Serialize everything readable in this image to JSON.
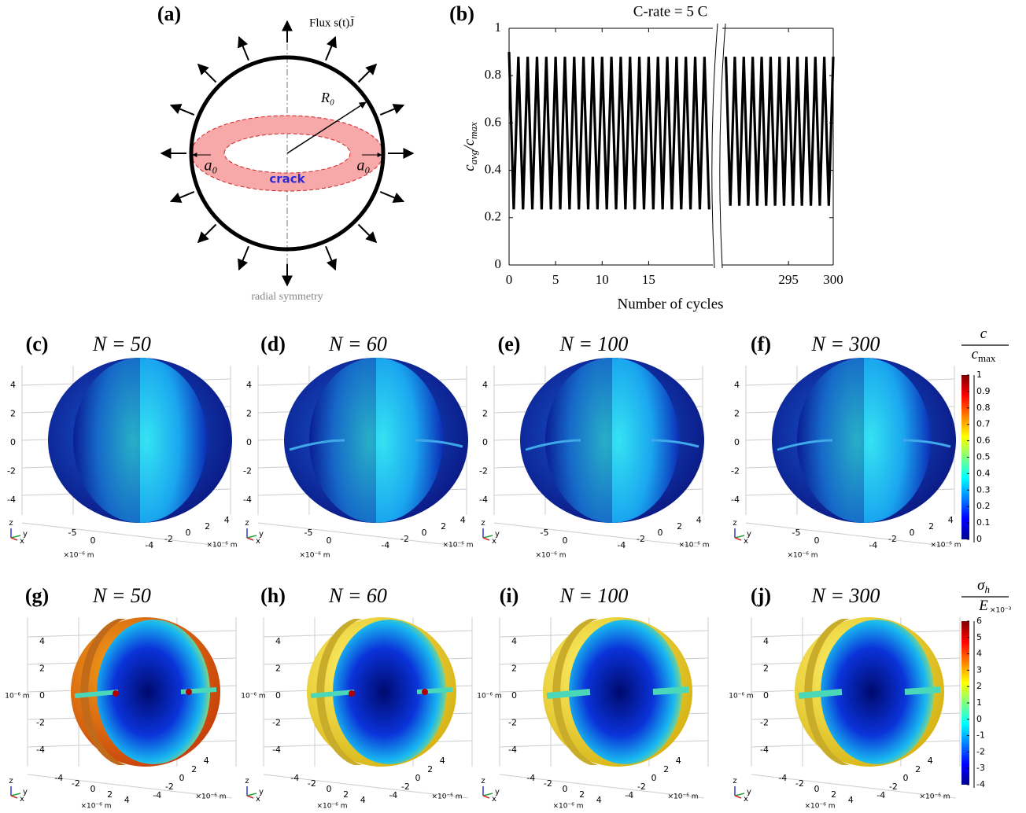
{
  "panel_a": {
    "label": "(a)",
    "flux": "Flux s(t)J̄",
    "radius": "R₀",
    "crack_width_left": "a₀",
    "crack_width_right": "a₀",
    "crack": "crack",
    "caption": "radial symmetry"
  },
  "chart_data": {
    "type": "line",
    "label": "(b)",
    "title": "C-rate = 5 C",
    "xlabel": "Number of cycles",
    "ylabel": [
      "c",
      "avg",
      "/c",
      "max"
    ],
    "xlim": [
      0,
      300
    ],
    "xbreak": [
      21.9,
      287.6
    ],
    "ylim": [
      0,
      1
    ],
    "xticks": [
      0,
      5,
      10,
      15,
      295,
      300
    ],
    "yticks": [
      0,
      0.2,
      0.4,
      0.6,
      0.8,
      1
    ],
    "color": "#000000",
    "series": [
      {
        "x": [
          0,
          0.5,
          1,
          1.5,
          2,
          2.5,
          3,
          3.5,
          4,
          4.5,
          5,
          5.5,
          6,
          6.5,
          7,
          7.5,
          8,
          8.5,
          9,
          9.5,
          10,
          10.5,
          11,
          11.5,
          12,
          12.5,
          13,
          13.5,
          14,
          14.5,
          15,
          15.5,
          16,
          16.5,
          17,
          17.5,
          18,
          18.5,
          19,
          19.5,
          20,
          20.5,
          21,
          21.5
        ],
        "values": [
          0.9,
          0.235,
          0.88,
          0.235,
          0.88,
          0.235,
          0.88,
          0.235,
          0.88,
          0.235,
          0.88,
          0.235,
          0.88,
          0.235,
          0.88,
          0.235,
          0.88,
          0.235,
          0.88,
          0.235,
          0.88,
          0.235,
          0.88,
          0.235,
          0.88,
          0.235,
          0.88,
          0.235,
          0.88,
          0.235,
          0.88,
          0.235,
          0.88,
          0.235,
          0.88,
          0.235,
          0.88,
          0.235,
          0.88,
          0.235,
          0.88,
          0.235,
          0.88,
          0.235
        ]
      },
      {
        "x": [
          288,
          288.5,
          289,
          289.5,
          290,
          290.5,
          291,
          291.5,
          292,
          292.5,
          293,
          293.5,
          294,
          294.5,
          295,
          295.5,
          296,
          296.5,
          297,
          297.5,
          298,
          298.5,
          299,
          299.5,
          300
        ],
        "values": [
          0.88,
          0.25,
          0.88,
          0.25,
          0.88,
          0.25,
          0.88,
          0.25,
          0.88,
          0.25,
          0.88,
          0.25,
          0.88,
          0.25,
          0.88,
          0.25,
          0.88,
          0.25,
          0.88,
          0.25,
          0.88,
          0.25,
          0.88,
          0.25,
          0.88
        ]
      }
    ]
  },
  "rows": [
    {
      "colorbar": {
        "numerator": [
          "c"
        ],
        "denominator": [
          "c",
          "max"
        ],
        "lim": [
          0,
          1
        ],
        "ticks": [
          0,
          0.1,
          0.2,
          0.3,
          0.4,
          0.5,
          0.6,
          0.7,
          0.8,
          0.9,
          1
        ]
      },
      "z_ticks": [
        4,
        2,
        0,
        -2,
        -4
      ],
      "x_ticks": [
        -5,
        0
      ],
      "y_ticks": [
        4,
        2,
        0,
        -2,
        -4
      ],
      "x_unit": "×10⁻⁶ m",
      "y_unit": "×10⁻⁶ m",
      "triad": [
        "z",
        "y",
        "x"
      ],
      "panels": [
        {
          "label": "(c)",
          "title": "N = 50"
        },
        {
          "label": "(d)",
          "title": "N = 60"
        },
        {
          "label": "(e)",
          "title": "N = 100"
        },
        {
          "label": "(f)",
          "title": "N = 300"
        }
      ]
    },
    {
      "colorbar": {
        "numerator": [
          "σ",
          "h"
        ],
        "denominator": [
          "E"
        ],
        "exponent": "×10⁻³",
        "lim": [
          -4,
          6
        ],
        "ticks": [
          -4,
          -3,
          -2,
          -1,
          0,
          1,
          2,
          3,
          4,
          5,
          6
        ]
      },
      "z_ticks": [
        4,
        2,
        0,
        -2,
        -4
      ],
      "x_ticks": [
        -4,
        -2,
        0,
        2,
        4
      ],
      "y_ticks": [
        4,
        2,
        0,
        -2,
        -4
      ],
      "z_unit": "10⁻⁶ m",
      "x_unit": "×10⁻⁶ m",
      "y_unit": "×10⁻⁶ m",
      "triad": [
        "z",
        "y",
        "x"
      ],
      "panels": [
        {
          "label": "(g)",
          "title": "N = 50"
        },
        {
          "label": "(h)",
          "title": "N = 60"
        },
        {
          "label": "(i)",
          "title": "N = 100"
        },
        {
          "label": "(j)",
          "title": "N = 300"
        }
      ]
    }
  ]
}
